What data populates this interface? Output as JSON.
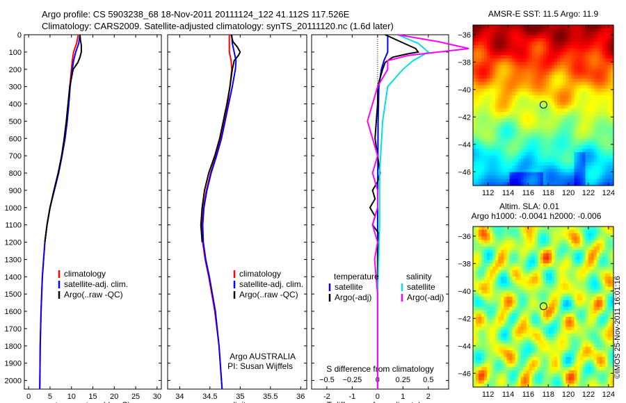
{
  "header": {
    "line1": "Argo profile: CS 5903238_68 18-Nov-2011 20111124_122 41.112S 117.526E",
    "line2": "Climatology: CARS2009. Satellite-adjusted climatology: synTS_20111120.nc (1.6d later)"
  },
  "side_stamp": "©IMOS 25-Nov-2011 16:01:16",
  "colors": {
    "climatology": "#ff0000",
    "satellite": "#0000ff",
    "argo": "#000000",
    "salinity_satellite": "#00e0e0",
    "salinity_argo": "#ff00ff"
  },
  "chart_data": [
    {
      "type": "line",
      "name": "temperature-profile",
      "xlabel": "temperature (deg C)",
      "ylabel": "",
      "xlim": [
        -1,
        31
      ],
      "ylim": [
        2050,
        0
      ],
      "x_ticks": [
        0,
        5,
        10,
        15,
        20,
        25,
        30
      ],
      "y_ticks": [
        0,
        100,
        200,
        300,
        400,
        500,
        600,
        700,
        800,
        900,
        1000,
        1100,
        1200,
        1300,
        1400,
        1500,
        1600,
        1700,
        1800,
        1900,
        2000
      ],
      "legend": [
        "climatology",
        "satellite-adj. clim.",
        "Argo(..raw -QC)"
      ],
      "legend_position": "lower-right",
      "series": [
        {
          "name": "climatology",
          "color": "#ff0000",
          "depth": [
            0,
            50,
            100,
            150,
            200,
            300,
            400,
            500,
            600,
            700,
            800,
            900,
            1000,
            1100,
            1200,
            1300,
            1400,
            1600,
            1800,
            2050
          ],
          "values": [
            11.6,
            11.2,
            10.5,
            10.2,
            10.0,
            9.6,
            9.3,
            9.0,
            8.5,
            7.8,
            7.0,
            6.0,
            5.0,
            4.3,
            3.8,
            3.5,
            3.2,
            2.9,
            2.7,
            2.6
          ]
        },
        {
          "name": "satellite-adj. clim.",
          "color": "#0000ff",
          "depth": [
            0,
            50,
            100,
            150,
            200,
            300,
            400,
            500,
            600,
            700,
            800,
            900,
            1000,
            1100,
            1200,
            1300,
            1400,
            1600,
            1800,
            2050
          ],
          "values": [
            12.0,
            11.7,
            11.0,
            10.5,
            10.2,
            9.7,
            9.4,
            9.0,
            8.5,
            7.8,
            7.0,
            6.0,
            5.0,
            4.3,
            3.8,
            3.5,
            3.2,
            2.9,
            2.7,
            2.6
          ]
        },
        {
          "name": "Argo(..raw -QC)",
          "color": "#000000",
          "depth": [
            0,
            30,
            60,
            100,
            130,
            160,
            200,
            300,
            400,
            500,
            600,
            700,
            800,
            900,
            1000,
            1100,
            1200
          ],
          "values": [
            12.0,
            12.1,
            12.3,
            12.3,
            12.0,
            11.5,
            10.4,
            9.6,
            9.2,
            8.8,
            8.3,
            7.7,
            6.9,
            5.9,
            5.0,
            4.3,
            3.8
          ]
        }
      ]
    },
    {
      "type": "line",
      "name": "salinity-profile",
      "xlabel": "salinity",
      "ylabel": "",
      "xlim": [
        33.8,
        36.1
      ],
      "ylim": [
        2050,
        0
      ],
      "x_ticks": [
        34,
        34.5,
        35,
        35.5,
        36
      ],
      "x_tick_labels": [
        "34",
        "34.5",
        "35",
        "35.5",
        "36"
      ],
      "legend": [
        "climatology",
        "satellite-adj. clim.",
        "Argo(..raw -QC)"
      ],
      "legend_position": "lower-right",
      "annotation": [
        "Argo AUSTRALIA",
        "PI: Susan Wijffels"
      ],
      "series": [
        {
          "name": "climatology",
          "color": "#ff0000",
          "depth": [
            0,
            50,
            100,
            150,
            200,
            300,
            400,
            500,
            600,
            700,
            800,
            900,
            1000,
            1100,
            1200,
            1300,
            1400,
            1600,
            1800,
            2050
          ],
          "values": [
            34.82,
            34.82,
            34.82,
            34.85,
            34.86,
            34.83,
            34.79,
            34.74,
            34.68,
            34.6,
            34.51,
            34.44,
            34.39,
            34.37,
            34.38,
            34.42,
            34.48,
            34.58,
            34.65,
            34.7
          ]
        },
        {
          "name": "satellite-adj. clim.",
          "color": "#0000ff",
          "depth": [
            0,
            50,
            100,
            150,
            200,
            300,
            400,
            500,
            600,
            700,
            800,
            900,
            1000,
            1100,
            1200,
            1300,
            1400,
            1600,
            1800,
            2050
          ],
          "values": [
            34.86,
            34.87,
            34.9,
            34.93,
            34.92,
            34.87,
            34.81,
            34.75,
            34.69,
            34.61,
            34.52,
            34.45,
            34.4,
            34.38,
            34.39,
            34.43,
            34.49,
            34.59,
            34.65,
            34.7
          ]
        },
        {
          "name": "Argo(..raw -QC)",
          "color": "#000000",
          "depth": [
            0,
            40,
            70,
            100,
            120,
            150,
            200,
            300,
            400,
            500,
            600,
            700,
            800,
            900,
            1000,
            1100,
            1200
          ],
          "values": [
            34.85,
            34.88,
            34.95,
            35.0,
            34.97,
            34.9,
            34.87,
            34.83,
            34.78,
            34.72,
            34.66,
            34.58,
            34.48,
            34.41,
            34.37,
            34.35,
            34.37
          ]
        }
      ]
    },
    {
      "type": "line",
      "name": "difference-profile",
      "xlabel": "T difference from climatology",
      "x2label": "S difference from climatology",
      "ylabel": "",
      "xlim": [
        -2.6,
        2.8
      ],
      "ylim": [
        2050,
        0
      ],
      "x_ticks": [
        -2,
        -1,
        0,
        1,
        2
      ],
      "x2_ticks": [
        -0.5,
        -0.25,
        0,
        0.25,
        0.5
      ],
      "x2_tick_labels": [
        "−0.5",
        "−0.25",
        "0",
        "0.25",
        "0.5"
      ],
      "legend_titles": [
        "temperature",
        "salinity"
      ],
      "legend": [
        "satellite",
        "Argo(-adj)",
        "satellite",
        "Argo(-adj)"
      ],
      "legend_position": "lower-middle",
      "series": [
        {
          "name": "satellite",
          "group": "temperature",
          "color": "#0000ff",
          "depth": [
            0,
            50,
            100,
            150,
            200,
            300,
            500,
            800,
            1100,
            1500,
            2050
          ],
          "values": [
            0.4,
            0.4,
            0.4,
            0.25,
            0.15,
            0.05,
            0.02,
            0.01,
            0.0,
            0.0,
            0.0
          ]
        },
        {
          "name": "Argo(-adj)",
          "group": "temperature",
          "color": "#000000",
          "depth": [
            0,
            40,
            80,
            100,
            110,
            130,
            160,
            200,
            250,
            300,
            400,
            500,
            600,
            700,
            800,
            850,
            900,
            950,
            1000,
            1050,
            1100,
            1150,
            1200,
            1300,
            1400,
            1500
          ],
          "values": [
            0.3,
            0.9,
            1.5,
            1.6,
            1.2,
            0.6,
            0.3,
            0.2,
            0.1,
            0.0,
            0.0,
            -0.05,
            -0.1,
            0.0,
            0.1,
            0.0,
            -0.2,
            -0.1,
            -0.3,
            -0.1,
            -0.2,
            0.05,
            0.0,
            0.0,
            0.0,
            0.0
          ]
        },
        {
          "name": "satellite",
          "group": "salinity",
          "color": "#00e0e0",
          "depth": [
            0,
            50,
            100,
            150,
            200,
            300,
            500,
            800,
            1100,
            1500,
            2050
          ],
          "values": [
            0.2,
            0.4,
            0.5,
            0.35,
            0.25,
            0.1,
            0.05,
            0.02,
            0.02,
            0.0,
            0.0
          ]
        },
        {
          "name": "Argo(-adj)",
          "group": "salinity",
          "color": "#ff00ff",
          "depth": [
            0,
            40,
            80,
            100,
            120,
            150,
            200,
            300,
            400,
            500,
            600,
            700,
            800,
            900,
            1000,
            1100,
            1200,
            1300,
            1500,
            2050
          ],
          "values": [
            0.2,
            0.6,
            0.9,
            0.6,
            0.3,
            0.1,
            0.1,
            0.0,
            -0.05,
            -0.1,
            -0.05,
            0.0,
            -0.05,
            0.0,
            0.0,
            -0.05,
            0.0,
            -0.03,
            0.0,
            0.0
          ]
        }
      ]
    },
    {
      "type": "heatmap",
      "name": "sst-map",
      "title": "AMSR-E SST: 11.5 Argo: 11.9",
      "xlim": [
        110.5,
        124.5
      ],
      "ylim": [
        -47,
        -35.3
      ],
      "x_ticks": [
        112,
        114,
        116,
        118,
        120,
        122,
        124
      ],
      "y_ticks": [
        -36,
        -38,
        -40,
        -42,
        -44,
        -46
      ],
      "marker": {
        "lon": 117.526,
        "lat": -41.112
      }
    },
    {
      "type": "heatmap",
      "name": "sla-map",
      "title": "Altim. SLA: 0.01",
      "subtitle": "Argo h1000: -0.0041 h2000: -0.006",
      "xlim": [
        110.5,
        124.5
      ],
      "ylim": [
        -47,
        -35.3
      ],
      "x_ticks": [
        112,
        114,
        116,
        118,
        120,
        122,
        124
      ],
      "y_ticks": [
        -36,
        -38,
        -40,
        -42,
        -44,
        -46
      ],
      "marker": {
        "lon": 117.526,
        "lat": -41.112
      }
    }
  ]
}
